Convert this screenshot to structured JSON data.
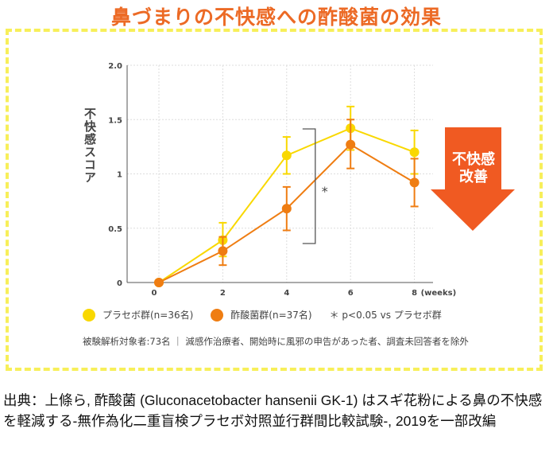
{
  "title": "鼻づまりの不快感への酢酸菌の効果",
  "chart_data": {
    "type": "line",
    "ylabel": "不快感スコア",
    "xlabel": "(weeks)",
    "x": [
      0,
      2,
      4,
      6,
      8
    ],
    "xticks": [
      "0",
      "2",
      "4",
      "6",
      "8"
    ],
    "yticks": [
      "0",
      "0.5",
      "1",
      "1.5",
      "2.0"
    ],
    "ylim": [
      0,
      2.0
    ],
    "grid": true,
    "series": [
      {
        "name": "プラセボ群(n=36名)",
        "color": "#f9d800",
        "values": [
          0,
          0.39,
          1.17,
          1.42,
          1.2
        ],
        "err_low": [
          0,
          0.24,
          1.0,
          1.22,
          1.0
        ],
        "err_high": [
          0,
          0.55,
          1.34,
          1.62,
          1.4
        ]
      },
      {
        "name": "酢酸菌群(n=37名)",
        "color": "#ef7d12",
        "values": [
          0,
          0.29,
          0.68,
          1.27,
          0.92
        ],
        "err_low": [
          0,
          0.16,
          0.48,
          1.05,
          0.7
        ],
        "err_high": [
          0,
          0.42,
          0.88,
          1.5,
          1.14
        ]
      }
    ],
    "significance": {
      "mark": "*",
      "between_x": 4
    },
    "significance_note": "＊ p<0.05 vs プラセボ群"
  },
  "arrow": {
    "line1": "不快感",
    "line2": "改善",
    "color": "#f05a22"
  },
  "note": "被験解析対象者:73名 ｜ 減感作治療者、開始時に風邪の申告があった者、調査未回答者を除外",
  "caption": "出典：上條ら, 酢酸菌 (Gluconacetobacter hansenii GK-1) はスギ花粉による鼻の不快感を軽減する-無作為化二重盲検プラセボ対照並行群間比較試験-, 2019を一部改編"
}
